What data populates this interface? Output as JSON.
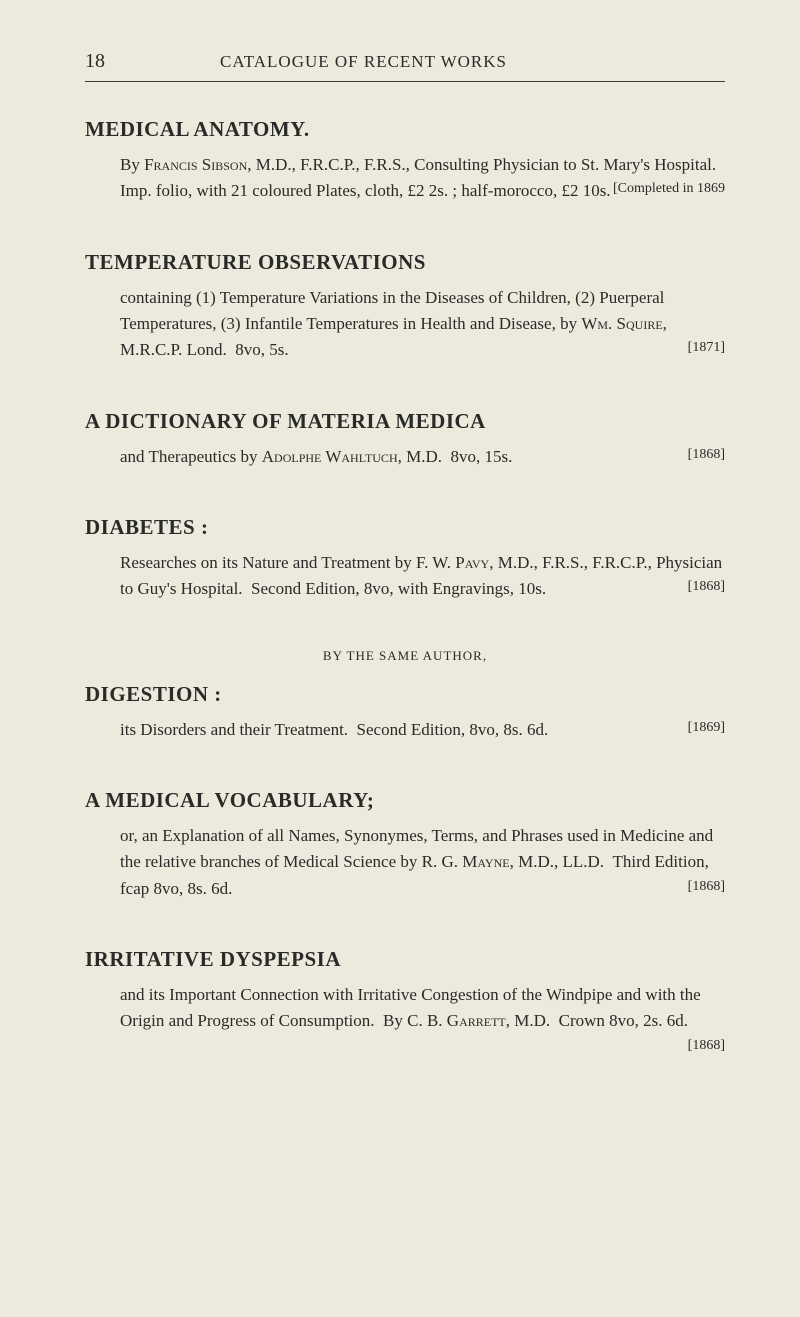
{
  "header": {
    "page_number": "18",
    "running_title": "CATALOGUE OF RECENT WORKS"
  },
  "entries": [
    {
      "title": "MEDICAL ANATOMY.",
      "body_html": "By <span class='small-caps'>Francis Sibson</span>, M.D., F.R.C.P., F.R.S., Consulting Physician to St. Mary's Hospital. Imp. folio, with 21 coloured Plates, cloth, £2 2s. ; half-morocco, £2 10s.",
      "year": "[Completed in 1869"
    },
    {
      "title": "TEMPERATURE OBSERVATIONS",
      "body_html": "containing (1) Temperature Variations in the Diseases of Children, (2) Puerperal Temperatures, (3) Infantile Temperatures in Health and Disease, by <span class='small-caps'>Wm. Squire</span>, M.R.C.P. Lond.&nbsp;&nbsp;8vo, 5s.",
      "year": "[1871]"
    },
    {
      "title": "A DICTIONARY OF MATERIA MEDICA",
      "body_html": "and Therapeutics by <span class='small-caps'>Adolphe Wahltuch</span>, M.D.&nbsp;&nbsp;8vo, 15s.",
      "year": "[1868]"
    },
    {
      "title": "DIABETES :",
      "body_html": "Researches on its Nature and Treatment by F. W. <span class='small-caps'>Pavy</span>, M.D., F.R.S., F.R.C.P., Physician to Guy's Hospital.&nbsp;&nbsp;Second Edition, 8vo, with Engravings, 10s.",
      "year": "[1868]"
    },
    {
      "byline": "BY THE SAME AUTHOR,",
      "title": "DIGESTION :",
      "body_html": "its Disorders and their Treatment.&nbsp;&nbsp;Second Edition, 8vo, 8s. 6d.",
      "year": "[1869]"
    },
    {
      "title": "A MEDICAL VOCABULARY;",
      "body_html": "or, an Explanation of all Names, Synonymes, Terms, and Phrases used in Medicine and the relative branches of Medical Science by R. G. <span class='small-caps'>Mayne</span>, M.D., LL.D.&nbsp;&nbsp;Third Edition, fcap 8vo, 8s. 6d.",
      "year": "[1868]"
    },
    {
      "title": "IRRITATIVE DYSPEPSIA",
      "body_html": "and its Important Connection with Irritative Congestion of the Windpipe and with the Origin and Progress of Consumption.&nbsp;&nbsp;By C. B. <span class='small-caps'>Garrett</span>, M.D.&nbsp;&nbsp;Crown 8vo, 2s. 6d.",
      "year": "[1868]"
    }
  ],
  "colors": {
    "background": "#eceadd",
    "text": "#2a2a28"
  }
}
